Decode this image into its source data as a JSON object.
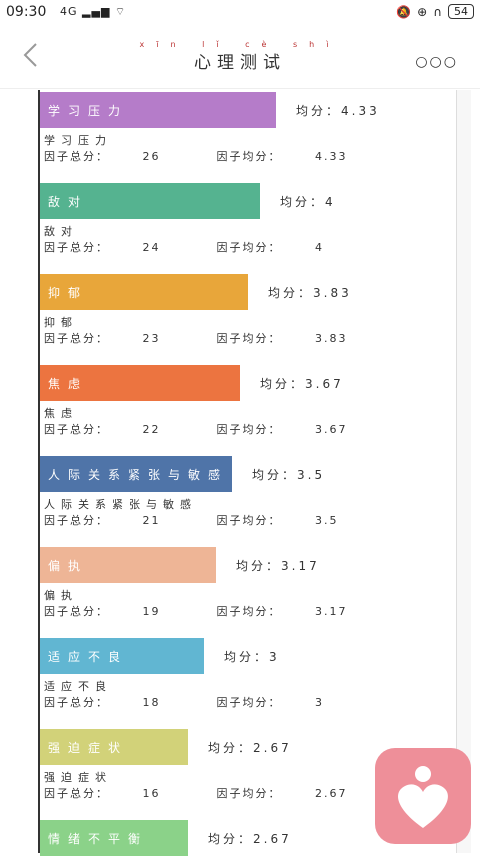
{
  "status": {
    "time": "09:30",
    "signal": "4G",
    "battery": "54"
  },
  "header": {
    "title": "心理测试",
    "pinyin": [
      "xīn",
      "lǐ",
      "cè",
      "shì"
    ]
  },
  "labels": {
    "avg": "均分：",
    "group_total": "因子总分：",
    "group_avg": "因子均分："
  },
  "factors": [
    {
      "name": "学习压力",
      "avg": "4.33",
      "total": "26",
      "color": "#b57cc9",
      "fill": 0.59
    },
    {
      "name": "敌对",
      "avg": "4",
      "total": "24",
      "color": "#55b390",
      "fill": 0.55
    },
    {
      "name": "抑郁",
      "avg": "3.83",
      "total": "23",
      "color": "#e8a63a",
      "fill": 0.52
    },
    {
      "name": "焦虑",
      "avg": "3.67",
      "total": "22",
      "color": "#ec7440",
      "fill": 0.5
    },
    {
      "name": "人际关系紧张与敏感",
      "avg": "3.5",
      "total": "21",
      "color": "#4f74a8",
      "fill": 0.48
    },
    {
      "name": "偏执",
      "avg": "3.17",
      "total": "19",
      "color": "#eeb596",
      "fill": 0.44
    },
    {
      "name": "适应不良",
      "avg": "3",
      "total": "18",
      "color": "#61b6d2",
      "fill": 0.41
    },
    {
      "name": "强迫症状",
      "avg": "2.67",
      "total": "16",
      "color": "#d2d279",
      "fill": 0.37
    },
    {
      "name": "情绪不平衡",
      "avg": "2.67",
      "total": "",
      "color": "#8bd289",
      "fill": 0.37
    }
  ]
}
